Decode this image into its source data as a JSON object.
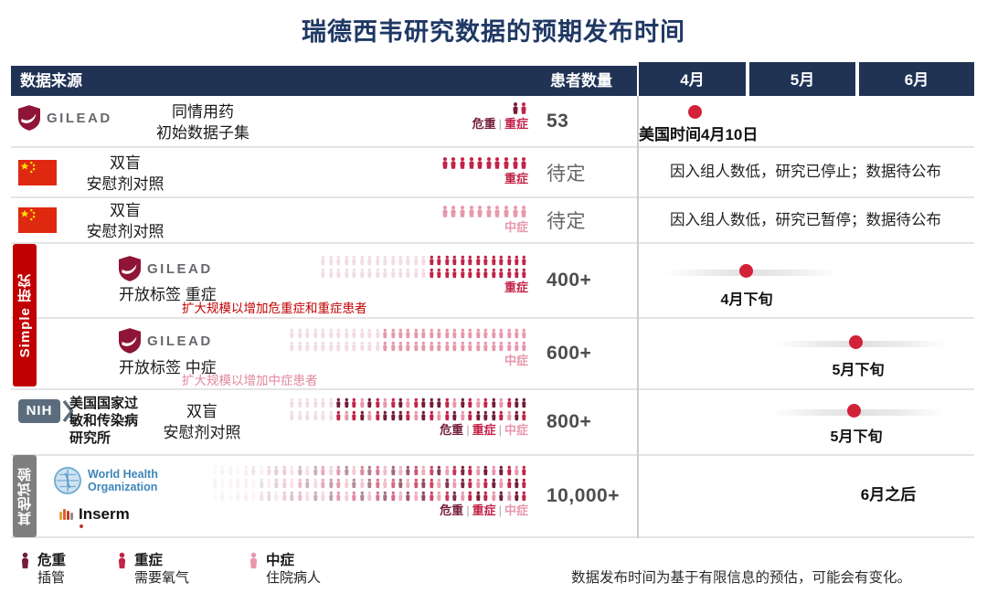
{
  "title": "瑞德西韦研究数据的预期发布时间",
  "colors": {
    "navy": "#203355",
    "navy_title": "#1f3864",
    "accent": "#d12239",
    "bar_red": "#c00000",
    "bar_gray": "#7f7f7f",
    "nih_slate": "#5b6d7c",
    "who_blue": "#3d85b8",
    "note_red": "#c00000",
    "note_pink": "#e287a0",
    "severity": {
      "critical": "#741d3a",
      "severe": "#c22348",
      "moderate": "#e897ad",
      "ghost": "#f2dce3"
    }
  },
  "header": {
    "source": "数据来源",
    "patients": "患者数量",
    "months": [
      "4月",
      "5月",
      "6月"
    ]
  },
  "side_groups": [
    {
      "label": "Simple 研究"
    },
    {
      "label": "其他试验"
    }
  ],
  "logos": {
    "gilead": "GILEAD",
    "nih": "NIH",
    "who1": "World Health",
    "who2": "Organization",
    "inserm": "Inserm"
  },
  "rows": [
    {
      "desc1": "同情用药",
      "desc2": "初始数据子集",
      "patients": "53",
      "icons": {
        "size": "lg",
        "rows": 1,
        "ghost": 0,
        "count": 2,
        "pattern": [
          "critical",
          "severe"
        ],
        "labels": [
          {
            "text": "危重",
            "sev": "critical"
          },
          {
            "text": "重症",
            "sev": "severe"
          }
        ]
      },
      "timeline": {
        "label": "美国时间4月10日"
      }
    },
    {
      "desc1": "双盲",
      "desc2": "安慰剂对照",
      "patients": "待定",
      "icons": {
        "size": "lg",
        "rows": 1,
        "ghost": 0,
        "count": 10,
        "pattern": [
          "severe"
        ],
        "labels": [
          {
            "text": "重症",
            "sev": "severe"
          }
        ]
      },
      "timeline": {
        "label": "因入组人数低，研究已停止；数据待公布"
      }
    },
    {
      "desc1": "双盲",
      "desc2": "安慰剂对照",
      "patients": "待定",
      "icons": {
        "size": "lg",
        "rows": 1,
        "ghost": 0,
        "count": 10,
        "pattern": [
          "moderate"
        ],
        "labels": [
          {
            "text": "中症",
            "sev": "moderate"
          }
        ]
      },
      "timeline": {
        "label": "因入组人数低，研究已暂停；数据待公布"
      }
    },
    {
      "desc1": "开放标签 重症",
      "note": "扩大规模以增加危重症和重症患者",
      "patients": "400+",
      "icons": {
        "size": "sm",
        "rows": 2,
        "ghost": 14,
        "count": 13,
        "pattern": [
          "severe"
        ],
        "labels": [
          {
            "text": "重症",
            "sev": "severe"
          }
        ]
      },
      "timeline": {
        "label": "4月下旬"
      }
    },
    {
      "desc1": "开放标签 中症",
      "note": "扩大规模以增加中症患者",
      "patients": "600+",
      "icons": {
        "size": "sm",
        "rows": 2,
        "ghost": 12,
        "count": 19,
        "pattern": [
          "moderate"
        ],
        "labels": [
          {
            "text": "中症",
            "sev": "moderate"
          }
        ]
      },
      "timeline": {
        "label": "5月下旬"
      }
    },
    {
      "org": "美国国家过敏和传染病研究所",
      "desc1": "双盲",
      "desc2": "安慰剂对照",
      "patients": "800+",
      "icons": {
        "size": "sm",
        "rows": 2,
        "ghost": 6,
        "count": 25,
        "pattern": [
          "critical",
          "critical",
          "severe",
          "moderate",
          "critical",
          "severe",
          "moderate",
          "severe",
          "critical",
          "moderate",
          "severe",
          "critical"
        ],
        "labels": [
          {
            "text": "危重",
            "sev": "critical"
          },
          {
            "text": "重症",
            "sev": "severe"
          },
          {
            "text": "中症",
            "sev": "moderate"
          }
        ]
      },
      "timeline": {
        "label": "5月下旬"
      }
    },
    {
      "patients": "10,000+",
      "icons": {
        "size": "sm",
        "rows": 3,
        "ghost": 0,
        "count": 41,
        "fade": true,
        "pattern": [
          "moderate",
          "critical",
          "severe",
          "moderate",
          "severe",
          "critical",
          "moderate",
          "severe",
          "critical",
          "severe",
          "moderate",
          "critical"
        ],
        "labels": [
          {
            "text": "危重",
            "sev": "critical"
          },
          {
            "text": "重症",
            "sev": "severe"
          },
          {
            "text": "中症",
            "sev": "moderate"
          }
        ]
      },
      "timeline": {
        "label": "6月之后"
      }
    }
  ],
  "legend": [
    {
      "title": "危重",
      "desc": "插管",
      "sev": "critical"
    },
    {
      "title": "重症",
      "desc": "需要氧气",
      "sev": "severe"
    },
    {
      "title": "中症",
      "desc": "住院病人",
      "sev": "moderate"
    }
  ],
  "footnote": "数据发布时间为基于有限信息的预估，可能会有变化。",
  "chart_data": {
    "type": "table",
    "title": "瑞德西韦研究数据的预期发布时间",
    "columns": [
      "数据来源",
      "患者数量",
      "4月",
      "5月",
      "6月"
    ],
    "rows": [
      {
        "source": "Gilead",
        "design": "同情用药 初始数据子集",
        "severity": "危重|重症",
        "patients": "53",
        "expected": "美国时间4月10日"
      },
      {
        "source": "中国",
        "design": "双盲 安慰剂对照",
        "severity": "重症",
        "patients": "待定",
        "expected": "因入组人数低，研究已停止；数据待公布"
      },
      {
        "source": "中国",
        "design": "双盲 安慰剂对照",
        "severity": "中症",
        "patients": "待定",
        "expected": "因入组人数低，研究已暂停；数据待公布"
      },
      {
        "source": "Gilead Simple研究",
        "design": "开放标签 重症",
        "severity": "重症",
        "patients": "400+",
        "expected": "4月下旬"
      },
      {
        "source": "Gilead Simple研究",
        "design": "开放标签 中症",
        "severity": "中症",
        "patients": "600+",
        "expected": "5月下旬"
      },
      {
        "source": "NIH 美国国家过敏和传染病研究所",
        "design": "双盲 安慰剂对照",
        "severity": "危重|重症|中症",
        "patients": "800+",
        "expected": "5月下旬"
      },
      {
        "source": "WHO / Inserm 其他试验",
        "design": "",
        "severity": "危重|重症|中症",
        "patients": "10,000+",
        "expected": "6月之后"
      }
    ]
  }
}
